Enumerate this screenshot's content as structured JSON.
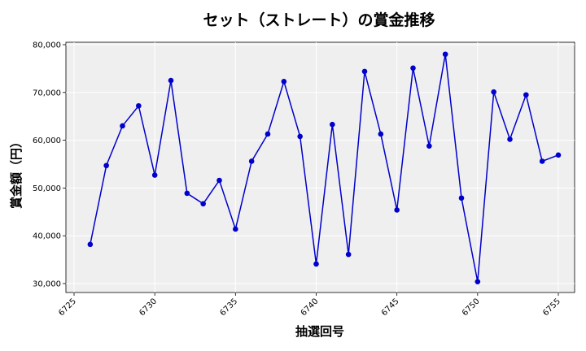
{
  "chart_data": {
    "type": "line",
    "title": "セット（ストレート）の賞金推移",
    "xlabel": "抽選回号",
    "ylabel": "賞金額（円）",
    "xlim": [
      6725,
      6755
    ],
    "ylim": [
      30000,
      80000
    ],
    "x_ticks": [
      6725,
      6730,
      6735,
      6740,
      6745,
      6750,
      6755
    ],
    "y_ticks": [
      30000,
      40000,
      50000,
      60000,
      70000,
      80000
    ],
    "x_tick_labels": [
      "6725",
      "6730",
      "6735",
      "6740",
      "6745",
      "6750",
      "6755"
    ],
    "y_tick_labels": [
      "30,000",
      "40,000",
      "50,000",
      "60,000",
      "70,000",
      "80,000"
    ],
    "grid": true,
    "series": [
      {
        "color": "#0000cc",
        "x": [
          6726,
          6727,
          6728,
          6729,
          6730,
          6731,
          6732,
          6733,
          6734,
          6735,
          6736,
          6737,
          6738,
          6739,
          6740,
          6741,
          6742,
          6743,
          6744,
          6745,
          6746,
          6747,
          6748,
          6749,
          6750,
          6751,
          6752,
          6753,
          6754,
          6755
        ],
        "y": [
          38200,
          54700,
          63000,
          67200,
          52700,
          72500,
          48900,
          46700,
          51600,
          41400,
          55600,
          61300,
          72300,
          60800,
          34100,
          63300,
          36100,
          74400,
          61300,
          45400,
          75100,
          58800,
          78000,
          47900,
          30400,
          70100,
          60200,
          69500,
          55600,
          56900
        ]
      }
    ]
  }
}
